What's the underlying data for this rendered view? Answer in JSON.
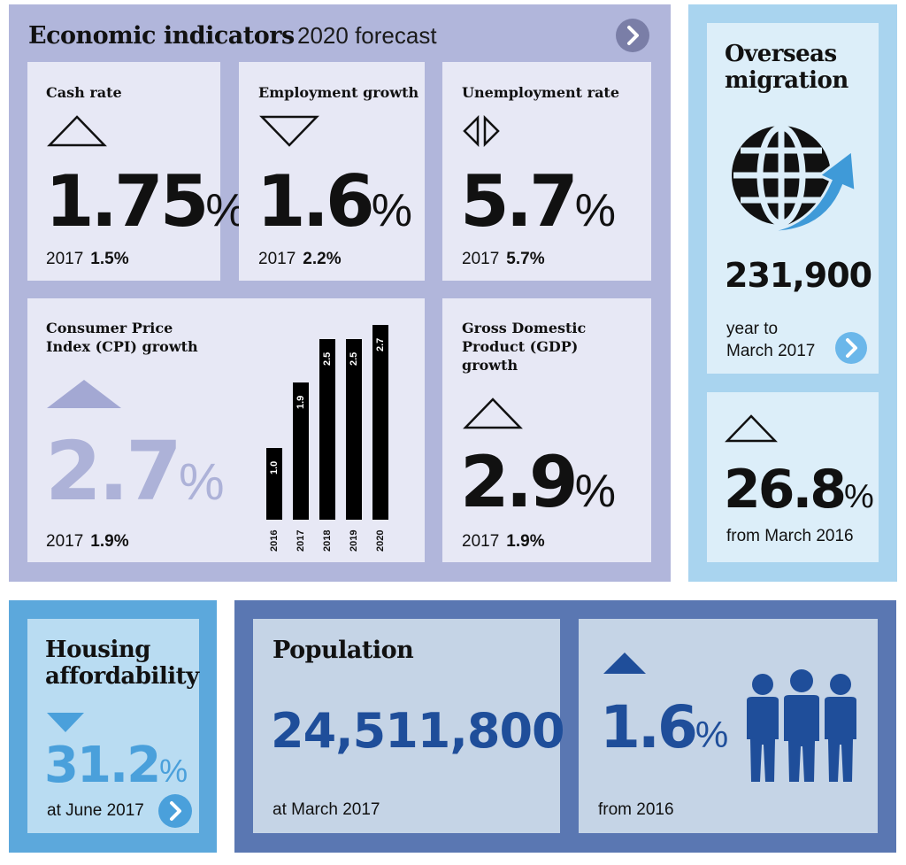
{
  "economic": {
    "title": "Economic indicators",
    "subtitle": "2020 forecast",
    "cash_rate": {
      "label": "Cash rate",
      "value": "1.75",
      "unit": "%",
      "prev_year": "2017",
      "prev_value": "1.5%",
      "trend": "up"
    },
    "employment_growth": {
      "label": "Employment growth",
      "value": "1.6",
      "unit": "%",
      "prev_year": "2017",
      "prev_value": "2.2%",
      "trend": "down"
    },
    "unemployment_rate": {
      "label": "Unemployment rate",
      "value": "5.7",
      "unit": "%",
      "prev_year": "2017",
      "prev_value": "5.7%",
      "trend": "steady"
    },
    "cpi": {
      "label_line1": "Consumer Price",
      "label_line2": "Index (CPI) growth",
      "value": "2.7",
      "unit": "%",
      "prev_year": "2017",
      "prev_value": "1.9%",
      "trend": "up"
    },
    "gdp": {
      "label_line1": "Gross Domestic",
      "label_line2": "Product (GDP)",
      "label_line3": "growth",
      "value": "2.9",
      "unit": "%",
      "prev_year": "2017",
      "prev_value": "1.9%",
      "trend": "up"
    }
  },
  "chart_data": {
    "type": "bar",
    "categories": [
      "2016",
      "2017",
      "2018",
      "2019",
      "2020"
    ],
    "values": [
      1.0,
      1.9,
      2.5,
      2.5,
      2.7
    ],
    "value_labels": [
      "1.0",
      "1.9",
      "2.5",
      "2.5",
      "2.7"
    ],
    "title": "",
    "xlabel": "",
    "ylabel": "",
    "ylim": [
      0,
      2.7
    ],
    "grid": false,
    "bar_color": "#000000"
  },
  "migration": {
    "title_line1": "Overseas",
    "title_line2": "migration",
    "value": "231,900",
    "caption_line1": "year to",
    "caption_line2": "March 2017",
    "change_value": "26.8",
    "change_unit": "%",
    "change_caption": "from March 2016",
    "icon": "globe-arrow-icon"
  },
  "housing": {
    "title_line1": "Housing",
    "title_line2": "affordability",
    "value": "31.2",
    "unit": "%",
    "caption": "at June 2017",
    "trend": "down"
  },
  "population": {
    "title": "Population",
    "value": "24,511,800",
    "caption": "at March 2017",
    "change_value": "1.6",
    "change_unit": "%",
    "change_caption": "from 2016",
    "icon": "people-icon"
  },
  "colors": {
    "econ_panel": "#b1b6db",
    "econ_card": "#e7e8f5",
    "cpi_faded": "#adb2d8",
    "migration_panel": "#a9d4ef",
    "migration_accent": "#3f9ad8",
    "housing_accent": "#4aa0db",
    "population_blue": "#1f4e9a"
  }
}
